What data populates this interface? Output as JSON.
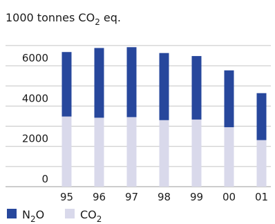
{
  "chart_data": {
    "type": "bar",
    "stacked": true,
    "title": "",
    "ylabel": {
      "prefix": "1000 tonnes CO",
      "sub": "2",
      "suffix": " eq."
    },
    "xlabel": "",
    "categories": [
      "95",
      "96",
      "97",
      "98",
      "99",
      "00",
      "01"
    ],
    "series": [
      {
        "name": {
          "prefix": "CO",
          "sub": "2",
          "suffix": ""
        },
        "color": "#d9d9eb",
        "values": [
          3480,
          3420,
          3450,
          3300,
          3330,
          2950,
          2310
        ]
      },
      {
        "name": {
          "prefix": "N",
          "sub": "2",
          "suffix": "O"
        },
        "color": "#27479c",
        "values": [
          3200,
          3460,
          3470,
          3330,
          3150,
          2820,
          2330
        ]
      }
    ],
    "yticks": [
      "0",
      "2000",
      "4000",
      "6000"
    ],
    "ylim": [
      0,
      7100
    ],
    "grid": true,
    "legend_position": "bottom-left",
    "legend_order": [
      1,
      0
    ]
  }
}
